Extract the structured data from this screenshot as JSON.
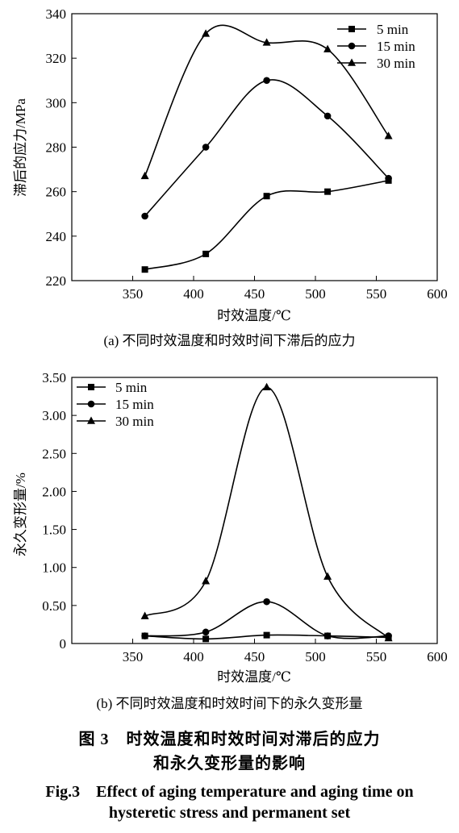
{
  "chart_data": [
    {
      "type": "line",
      "panel": "a",
      "caption": "(a) 不同时效温度和时效时间下滞后的应力",
      "xlabel": "时效温度/℃",
      "ylabel": "滞后的应力/MPa",
      "xlim": [
        300,
        600
      ],
      "ylim": [
        220,
        340
      ],
      "xticks": [
        350,
        400,
        450,
        500,
        550,
        600
      ],
      "yticks": [
        220,
        240,
        260,
        280,
        300,
        320,
        340
      ],
      "ytick_labels": [
        "220",
        "240",
        "260",
        "280",
        "300",
        "320",
        "340"
      ],
      "x": [
        360,
        410,
        460,
        510,
        560
      ],
      "legend_position": "top-right",
      "grid": false,
      "series": [
        {
          "name": "5 min",
          "marker": "square",
          "values": [
            225,
            232,
            258,
            260,
            265
          ]
        },
        {
          "name": "15 min",
          "marker": "circle",
          "values": [
            249,
            280,
            310,
            294,
            266
          ]
        },
        {
          "name": "30 min",
          "marker": "triangle",
          "values": [
            267,
            331,
            327,
            324,
            285
          ]
        }
      ]
    },
    {
      "type": "line",
      "panel": "b",
      "caption": "(b) 不同时效温度和时效时间下的永久变形量",
      "xlabel": "时效温度/℃",
      "ylabel": "永久变形量/%",
      "xlim": [
        300,
        600
      ],
      "ylim": [
        0,
        3.5
      ],
      "xticks": [
        350,
        400,
        450,
        500,
        550,
        600
      ],
      "yticks": [
        0,
        0.5,
        1.0,
        1.5,
        2.0,
        2.5,
        3.0,
        3.5
      ],
      "ytick_labels": [
        "0",
        "0.50",
        "1.00",
        "1.50",
        "2.00",
        "2.50",
        "3.00",
        "3.50"
      ],
      "x": [
        360,
        410,
        460,
        510,
        560
      ],
      "legend_position": "top-left",
      "grid": false,
      "series": [
        {
          "name": "5 min",
          "marker": "square",
          "values": [
            0.1,
            0.06,
            0.11,
            0.1,
            0.08
          ]
        },
        {
          "name": "15 min",
          "marker": "circle",
          "values": [
            0.1,
            0.15,
            0.55,
            0.1,
            0.1
          ]
        },
        {
          "name": "30 min",
          "marker": "triangle",
          "values": [
            0.36,
            0.82,
            3.37,
            0.88,
            0.07
          ]
        }
      ]
    }
  ],
  "figure": {
    "title_cn_line1": "图 3　时效温度和时效时间对滞后的应力",
    "title_cn_line2": "和永久变形量的影响",
    "title_en_line1": "Fig.3　Effect of aging temperature and aging time on",
    "title_en_line2": "hysteretic stress and permanent set"
  }
}
